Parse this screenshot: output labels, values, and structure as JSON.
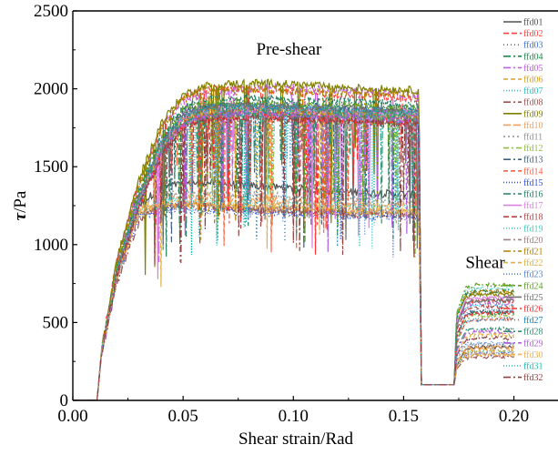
{
  "chart_data": {
    "type": "line",
    "xlabel": "Shear strain/Rad",
    "ylabel_symbol": "τ",
    "ylabel_unit": "/Pa",
    "xlim": [
      0.0,
      0.22
    ],
    "ylim": [
      0,
      2500
    ],
    "x_ticks": [
      0.0,
      0.05,
      0.1,
      0.15,
      0.2
    ],
    "x_tick_labels": [
      "0.00",
      "0.05",
      "0.10",
      "0.15",
      "0.20"
    ],
    "y_ticks": [
      0,
      500,
      1000,
      1500,
      2000,
      2500
    ],
    "y_tick_labels": [
      "0",
      "500",
      "1000",
      "1500",
      "2000",
      "2500"
    ],
    "annotations": [
      {
        "text": "Pre-shear",
        "x": 0.098,
        "y": 2220
      },
      {
        "text": "Shear",
        "x": 0.187,
        "y": 850
      }
    ],
    "legend_position": "right",
    "x_breakpoints": [
      0.0,
      0.011,
      0.013,
      0.02,
      0.03,
      0.04,
      0.05,
      0.06,
      0.08,
      0.1,
      0.12,
      0.14,
      0.157,
      0.158,
      0.159,
      0.165,
      0.173,
      0.174,
      0.178,
      0.182,
      0.19,
      0.2
    ],
    "series": [
      {
        "name": "ffd01",
        "color": "#505050",
        "dash": "solid",
        "values": [
          0,
          0,
          300,
          800,
          1250,
          1370,
          1390,
          1400,
          1380,
          1360,
          1340,
          1330,
          1320,
          100,
          100,
          100,
          100,
          220,
          330,
          340,
          340,
          340
        ]
      },
      {
        "name": "ffd02",
        "color": "#ff4040",
        "dash": "6,3",
        "values": [
          0,
          0,
          320,
          900,
          1400,
          1750,
          1950,
          2000,
          2000,
          1980,
          1960,
          1950,
          1940,
          100,
          100,
          100,
          100,
          500,
          620,
          640,
          640,
          640
        ]
      },
      {
        "name": "ffd03",
        "color": "#3a6fd8",
        "dash": "1,3",
        "values": [
          0,
          0,
          300,
          850,
          1300,
          1650,
          1850,
          1900,
          1900,
          1890,
          1880,
          1870,
          1860,
          100,
          100,
          100,
          100,
          420,
          560,
          580,
          580,
          580
        ]
      },
      {
        "name": "ffd04",
        "color": "#1a8a4a",
        "dash": "8,3,2,3",
        "values": [
          0,
          0,
          310,
          820,
          1280,
          1620,
          1820,
          1880,
          1880,
          1870,
          1860,
          1850,
          1840,
          100,
          100,
          100,
          100,
          400,
          540,
          560,
          560,
          560
        ]
      },
      {
        "name": "ffd05",
        "color": "#c060e0",
        "dash": "8,3,2,3",
        "values": [
          0,
          0,
          300,
          880,
          1380,
          1750,
          1920,
          1960,
          2000,
          2010,
          1990,
          1980,
          1960,
          100,
          100,
          100,
          100,
          480,
          600,
          620,
          620,
          620
        ]
      },
      {
        "name": "ffd06",
        "color": "#e0a020",
        "dash": "5,3",
        "values": [
          0,
          0,
          300,
          780,
          1200,
          1240,
          1250,
          1240,
          1230,
          1220,
          1210,
          1200,
          1200,
          100,
          100,
          100,
          100,
          230,
          310,
          320,
          320,
          320
        ]
      },
      {
        "name": "ffd07",
        "color": "#30c0d0",
        "dash": "1,2",
        "values": [
          0,
          0,
          310,
          840,
          1300,
          1640,
          1840,
          1880,
          1890,
          1880,
          1870,
          1860,
          1850,
          100,
          100,
          100,
          100,
          460,
          590,
          610,
          610,
          610
        ]
      },
      {
        "name": "ffd08",
        "color": "#a05050",
        "dash": "8,3,2,3",
        "values": [
          0,
          0,
          300,
          760,
          1150,
          1250,
          1260,
          1250,
          1230,
          1210,
          1200,
          1190,
          1180,
          100,
          100,
          100,
          100,
          200,
          270,
          280,
          280,
          280
        ]
      },
      {
        "name": "ffd09",
        "color": "#808000",
        "dash": "solid",
        "values": [
          0,
          0,
          320,
          900,
          1420,
          1780,
          1960,
          2020,
          2040,
          2030,
          2010,
          2000,
          1990,
          100,
          100,
          100,
          100,
          540,
          660,
          680,
          680,
          680
        ]
      },
      {
        "name": "ffd10",
        "color": "#f0a060",
        "dash": "8,3",
        "values": [
          0,
          0,
          300,
          800,
          1220,
          1300,
          1310,
          1300,
          1290,
          1280,
          1270,
          1260,
          1250,
          100,
          100,
          100,
          100,
          250,
          330,
          340,
          340,
          340
        ]
      },
      {
        "name": "ffd11",
        "color": "#909090",
        "dash": "2,3",
        "values": [
          0,
          0,
          310,
          830,
          1260,
          1330,
          1340,
          1330,
          1320,
          1310,
          1300,
          1290,
          1280,
          100,
          100,
          100,
          100,
          260,
          350,
          360,
          360,
          360
        ]
      },
      {
        "name": "ffd12",
        "color": "#90c040",
        "dash": "6,3,2,3",
        "values": [
          0,
          0,
          300,
          820,
          1280,
          1600,
          1780,
          1820,
          1830,
          1820,
          1810,
          1800,
          1790,
          100,
          100,
          100,
          100,
          380,
          520,
          540,
          540,
          540
        ]
      },
      {
        "name": "ffd13",
        "color": "#406080",
        "dash": "8,3,2,3",
        "values": [
          0,
          0,
          310,
          850,
          1320,
          1660,
          1850,
          1890,
          1900,
          1890,
          1880,
          1870,
          1860,
          100,
          100,
          100,
          100,
          400,
          550,
          570,
          570,
          570
        ]
      },
      {
        "name": "ffd14",
        "color": "#ff6040",
        "dash": "5,3",
        "values": [
          0,
          0,
          300,
          820,
          1300,
          1620,
          1800,
          1850,
          1860,
          1850,
          1840,
          1830,
          1820,
          100,
          100,
          100,
          100,
          360,
          500,
          520,
          520,
          520
        ]
      },
      {
        "name": "ffd15",
        "color": "#3050e0",
        "dash": "1,2",
        "values": [
          0,
          0,
          300,
          780,
          1180,
          1220,
          1230,
          1220,
          1210,
          1200,
          1190,
          1180,
          1170,
          100,
          100,
          100,
          100,
          220,
          290,
          300,
          300,
          300
        ]
      },
      {
        "name": "ffd16",
        "color": "#208060",
        "dash": "8,3,2,3",
        "values": [
          0,
          0,
          310,
          860,
          1340,
          1700,
          1880,
          1930,
          1940,
          1930,
          1920,
          1910,
          1900,
          100,
          100,
          100,
          100,
          520,
          680,
          700,
          700,
          700
        ]
      },
      {
        "name": "ffd17",
        "color": "#e080e0",
        "dash": "solid",
        "values": [
          0,
          0,
          300,
          830,
          1300,
          1640,
          1820,
          1870,
          1880,
          1870,
          1860,
          1850,
          1840,
          100,
          100,
          100,
          100,
          500,
          640,
          660,
          660,
          660
        ]
      },
      {
        "name": "ffd18",
        "color": "#c04040",
        "dash": "6,3",
        "values": [
          0,
          0,
          310,
          810,
          1260,
          1600,
          1790,
          1840,
          1850,
          1840,
          1830,
          1820,
          1810,
          100,
          100,
          100,
          100,
          450,
          580,
          600,
          600,
          600
        ]
      },
      {
        "name": "ffd19",
        "color": "#40d0c0",
        "dash": "1,2",
        "values": [
          0,
          0,
          300,
          800,
          1220,
          1280,
          1290,
          1280,
          1270,
          1260,
          1250,
          1240,
          1230,
          100,
          100,
          100,
          100,
          230,
          300,
          310,
          310,
          310
        ]
      },
      {
        "name": "ffd20",
        "color": "#a08080",
        "dash": "8,3,2,3",
        "values": [
          0,
          0,
          300,
          790,
          1200,
          1250,
          1260,
          1250,
          1240,
          1230,
          1220,
          1210,
          1200,
          100,
          100,
          100,
          100,
          220,
          290,
          300,
          300,
          300
        ]
      },
      {
        "name": "ffd21",
        "color": "#b08000",
        "dash": "8,3,2,3",
        "values": [
          0,
          0,
          320,
          880,
          1380,
          1740,
          1930,
          1990,
          2000,
          1990,
          1980,
          1970,
          1960,
          100,
          100,
          100,
          100,
          540,
          680,
          700,
          700,
          700
        ]
      },
      {
        "name": "ffd22",
        "color": "#e0b040",
        "dash": "5,3",
        "values": [
          0,
          0,
          300,
          820,
          1290,
          1620,
          1800,
          1850,
          1860,
          1850,
          1840,
          1830,
          1820,
          100,
          100,
          100,
          100,
          300,
          400,
          420,
          420,
          420
        ]
      },
      {
        "name": "ffd23",
        "color": "#5080d0",
        "dash": "1,2",
        "values": [
          0,
          0,
          300,
          810,
          1260,
          1590,
          1770,
          1820,
          1830,
          1820,
          1810,
          1800,
          1790,
          100,
          100,
          100,
          100,
          280,
          360,
          370,
          370,
          370
        ]
      },
      {
        "name": "ffd24",
        "color": "#60a020",
        "dash": "8,3,2,3",
        "values": [
          0,
          0,
          310,
          850,
          1330,
          1680,
          1860,
          1900,
          1910,
          1900,
          1890,
          1880,
          1870,
          100,
          100,
          100,
          100,
          560,
          720,
          740,
          740,
          740
        ]
      },
      {
        "name": "ffd25",
        "color": "#707070",
        "dash": "solid",
        "values": [
          0,
          0,
          300,
          830,
          1300,
          1650,
          1830,
          1880,
          1890,
          1880,
          1870,
          1860,
          1850,
          100,
          100,
          100,
          100,
          480,
          620,
          640,
          640,
          640
        ]
      },
      {
        "name": "ffd26",
        "color": "#ff3030",
        "dash": "6,3",
        "values": [
          0,
          0,
          300,
          800,
          1250,
          1580,
          1760,
          1810,
          1820,
          1810,
          1800,
          1790,
          1780,
          100,
          100,
          100,
          100,
          420,
          540,
          560,
          560,
          560
        ]
      },
      {
        "name": "ffd27",
        "color": "#2080c0",
        "dash": "1,3",
        "values": [
          0,
          0,
          310,
          840,
          1310,
          1650,
          1830,
          1880,
          1890,
          1880,
          1870,
          1860,
          1850,
          100,
          100,
          100,
          100,
          380,
          500,
          520,
          520,
          520
        ]
      },
      {
        "name": "ffd28",
        "color": "#309070",
        "dash": "8,3,2,3",
        "values": [
          0,
          0,
          300,
          820,
          1270,
          1610,
          1790,
          1840,
          1850,
          1840,
          1830,
          1820,
          1810,
          100,
          100,
          100,
          100,
          330,
          440,
          460,
          460,
          460
        ]
      },
      {
        "name": "ffd29",
        "color": "#b060e0",
        "dash": "8,3,2,3",
        "values": [
          0,
          0,
          300,
          810,
          1260,
          1600,
          1780,
          1830,
          1840,
          1830,
          1820,
          1810,
          1800,
          100,
          100,
          100,
          100,
          320,
          420,
          440,
          440,
          440
        ]
      },
      {
        "name": "ffd30",
        "color": "#f0b050",
        "dash": "5,3",
        "values": [
          0,
          0,
          300,
          790,
          1210,
          1260,
          1270,
          1260,
          1250,
          1240,
          1230,
          1220,
          1210,
          100,
          100,
          100,
          100,
          210,
          280,
          290,
          290,
          290
        ]
      },
      {
        "name": "ffd31",
        "color": "#20c0b0",
        "dash": "1,2",
        "values": [
          0,
          0,
          310,
          830,
          1300,
          1640,
          1820,
          1870,
          1880,
          1870,
          1860,
          1850,
          1840,
          100,
          100,
          100,
          100,
          560,
          700,
          720,
          720,
          720
        ]
      },
      {
        "name": "ffd32",
        "color": "#904040",
        "dash": "8,3,2,3",
        "values": [
          0,
          0,
          300,
          800,
          1240,
          1570,
          1750,
          1800,
          1810,
          1800,
          1790,
          1780,
          1770,
          100,
          100,
          100,
          100,
          290,
          380,
          400,
          400,
          400
        ]
      }
    ]
  }
}
